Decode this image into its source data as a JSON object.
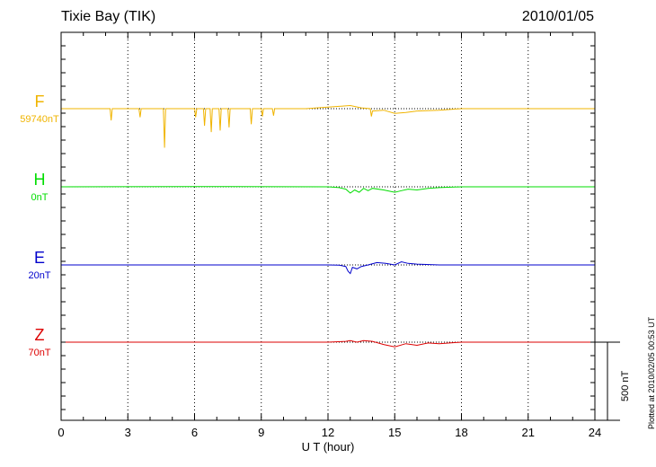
{
  "header": {
    "station": "Tixie Bay (TIK)",
    "date": "2010/01/05"
  },
  "footer": {
    "plotted_note": "Plotted at 2010/02/05 00:53 UT",
    "scale_label": "500 nT"
  },
  "chart_data": {
    "type": "line",
    "xlabel": "U T (hour)",
    "xlim": [
      0,
      24
    ],
    "xticks": [
      0,
      3,
      6,
      9,
      12,
      15,
      18,
      21,
      24
    ],
    "xtick_labels": [
      "0",
      "3",
      "6",
      "9",
      "12",
      "15",
      "18",
      "21",
      "24"
    ],
    "grid": "vertical dotted at 3-hour intervals",
    "scale_bar_nT": 500,
    "series": [
      {
        "name": "F",
        "baseline_label": "59740nT",
        "color": "#f0b400",
        "x": [
          0,
          2.2,
          2.25,
          2.3,
          3.5,
          3.55,
          3.6,
          4.6,
          4.65,
          4.7,
          6.0,
          6.05,
          6.1,
          6.4,
          6.45,
          6.5,
          6.7,
          6.75,
          6.8,
          7.1,
          7.15,
          7.2,
          7.5,
          7.55,
          7.6,
          8.5,
          8.55,
          8.6,
          9.0,
          9.05,
          9.1,
          9.5,
          9.55,
          9.6,
          11.0,
          12.0,
          12.5,
          13.0,
          13.5,
          13.9,
          13.95,
          14.0,
          14.5,
          15.0,
          15.5,
          16.0,
          17.0,
          18.0,
          20.0,
          22.0,
          24.0
        ],
        "y": [
          0,
          0,
          -75,
          0,
          0,
          -55,
          0,
          0,
          -250,
          0,
          0,
          -55,
          0,
          0,
          -110,
          0,
          0,
          -150,
          0,
          0,
          -140,
          0,
          0,
          -120,
          0,
          0,
          -100,
          0,
          0,
          -50,
          0,
          0,
          -45,
          0,
          0,
          10,
          15,
          20,
          5,
          0,
          -50,
          -15,
          -10,
          -30,
          -25,
          -15,
          -10,
          0,
          0,
          0,
          0
        ]
      },
      {
        "name": "H",
        "baseline_label": "0nT",
        "color": "#00dd00",
        "x": [
          0,
          6,
          12,
          12.5,
          12.8,
          13.0,
          13.2,
          13.4,
          13.6,
          13.8,
          14.0,
          14.5,
          15.0,
          15.3,
          15.6,
          16.0,
          16.5,
          17.0,
          18.0,
          24.0
        ],
        "y": [
          0,
          2,
          0,
          -5,
          -15,
          -40,
          -20,
          -35,
          -10,
          -25,
          -10,
          -20,
          -35,
          -25,
          -15,
          -20,
          -10,
          -5,
          0,
          0
        ]
      },
      {
        "name": "E",
        "baseline_label": "20nT",
        "color": "#0000cc",
        "x": [
          0,
          6,
          12,
          12.5,
          12.8,
          12.9,
          13.0,
          13.1,
          13.3,
          13.5,
          13.8,
          14.2,
          14.6,
          15.0,
          15.3,
          15.6,
          16.0,
          17.0,
          18.0,
          24.0
        ],
        "y": [
          0,
          0,
          0,
          -2,
          -10,
          -40,
          -55,
          -15,
          -25,
          -10,
          0,
          15,
          10,
          0,
          20,
          10,
          5,
          0,
          0,
          0
        ]
      },
      {
        "name": "Z",
        "baseline_label": "70nT",
        "color": "#dd0000",
        "x": [
          0,
          6,
          12,
          12.8,
          13.0,
          13.3,
          13.6,
          14.0,
          14.5,
          15.0,
          15.5,
          16.0,
          16.5,
          17.0,
          18.0,
          24.0
        ],
        "y": [
          0,
          0,
          0,
          5,
          10,
          0,
          10,
          5,
          -15,
          -30,
          -10,
          -20,
          -5,
          -10,
          0,
          0
        ]
      }
    ]
  }
}
